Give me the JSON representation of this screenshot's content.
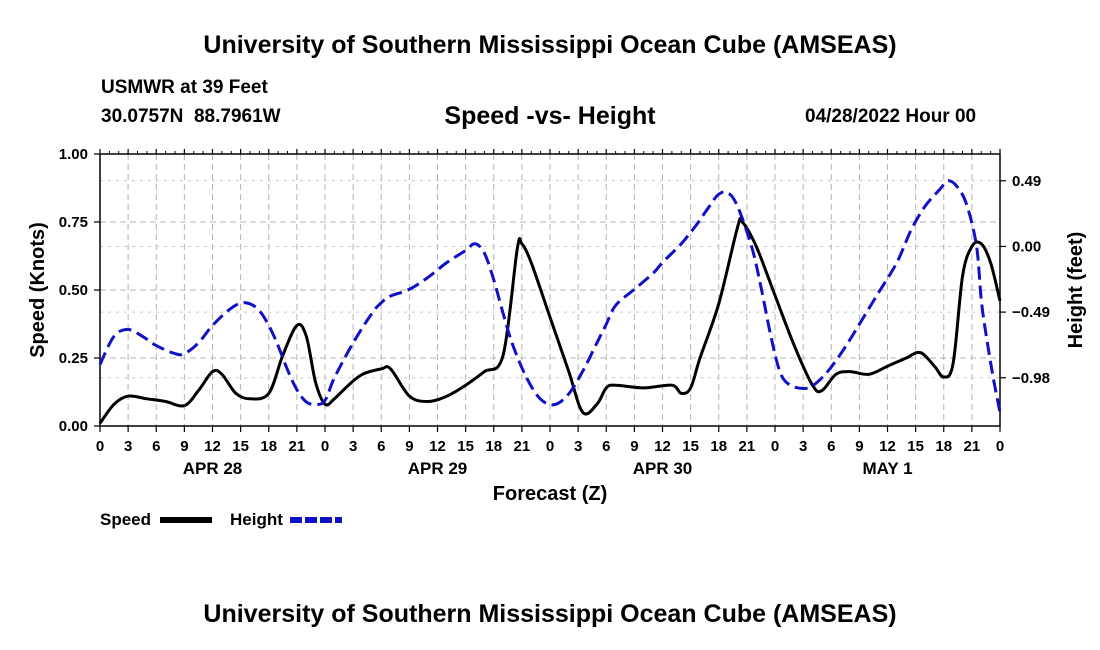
{
  "page": {
    "title_top": "University of Southern Mississippi Ocean Cube (AMSEAS)",
    "title_bottom": "University of Southern Mississippi Ocean Cube (AMSEAS)",
    "station": "USMWR at 39 Feet",
    "coords": "30.0757N  88.7961W",
    "chart_title": "Speed -vs- Height",
    "datetime": "04/28/2022 Hour 00"
  },
  "chart_data": {
    "type": "line",
    "title": "Speed -vs- Height",
    "xlabel": "Forecast (Z)",
    "ylabel": "Speed (Knots)",
    "ylabel_right": "Height (feet)",
    "x_hours": [
      0,
      3,
      6,
      9,
      12,
      15,
      18,
      21,
      24,
      27,
      30,
      33,
      36,
      39,
      42,
      45,
      48,
      51,
      54,
      57,
      60,
      63,
      66,
      69,
      72,
      75,
      78,
      81,
      84,
      87,
      90,
      93,
      96
    ],
    "xtick_labels": [
      "0",
      "3",
      "6",
      "9",
      "12",
      "15",
      "18",
      "21",
      "0",
      "3",
      "6",
      "9",
      "12",
      "15",
      "18",
      "21",
      "0",
      "3",
      "6",
      "9",
      "12",
      "15",
      "18",
      "21",
      "0",
      "3",
      "6",
      "9",
      "12",
      "15",
      "18",
      "21",
      "0"
    ],
    "day_labels": [
      {
        "label": "APR 28",
        "hour": 12
      },
      {
        "label": "APR 29",
        "hour": 36
      },
      {
        "label": "APR 30",
        "hour": 60
      },
      {
        "label": "MAY 1",
        "hour": 84
      }
    ],
    "xlim": [
      0,
      96
    ],
    "ylim": [
      0,
      1.0
    ],
    "yticks": [
      "0.00",
      "0.25",
      "0.50",
      "0.75",
      "1.00"
    ],
    "ylim_right": [
      -1.34,
      0.69
    ],
    "yticks_right": [
      "0.49",
      "0.00",
      "−0.49",
      "−0.98"
    ],
    "grid": true,
    "series": [
      {
        "name": "Speed",
        "color": "#000000",
        "axis": "left",
        "points": [
          [
            0,
            0.01
          ],
          [
            1.5,
            0.08
          ],
          [
            3,
            0.11
          ],
          [
            5,
            0.1
          ],
          [
            7,
            0.09
          ],
          [
            9,
            0.075
          ],
          [
            10.5,
            0.13
          ],
          [
            12,
            0.2
          ],
          [
            13,
            0.19
          ],
          [
            14.5,
            0.12
          ],
          [
            16,
            0.1
          ],
          [
            18,
            0.12
          ],
          [
            19.5,
            0.26
          ],
          [
            21,
            0.37
          ],
          [
            22,
            0.33
          ],
          [
            23,
            0.16
          ],
          [
            24,
            0.08
          ],
          [
            25,
            0.1
          ],
          [
            26.5,
            0.15
          ],
          [
            28,
            0.19
          ],
          [
            30,
            0.21
          ],
          [
            31,
            0.21
          ],
          [
            33,
            0.11
          ],
          [
            35,
            0.09
          ],
          [
            37,
            0.11
          ],
          [
            39,
            0.15
          ],
          [
            41,
            0.2
          ],
          [
            43,
            0.26
          ],
          [
            44.5,
            0.65
          ],
          [
            45,
            0.67
          ],
          [
            46,
            0.6
          ],
          [
            48,
            0.4
          ],
          [
            50,
            0.2
          ],
          [
            51.5,
            0.05
          ],
          [
            53,
            0.08
          ],
          [
            54,
            0.14
          ],
          [
            55,
            0.15
          ],
          [
            58,
            0.14
          ],
          [
            61,
            0.15
          ],
          [
            62,
            0.12
          ],
          [
            63,
            0.14
          ],
          [
            64,
            0.25
          ],
          [
            66,
            0.45
          ],
          [
            68,
            0.73
          ],
          [
            68.5,
            0.75
          ],
          [
            70,
            0.66
          ],
          [
            72,
            0.48
          ],
          [
            74,
            0.3
          ],
          [
            76,
            0.15
          ],
          [
            77,
            0.13
          ],
          [
            78.5,
            0.19
          ],
          [
            80,
            0.2
          ],
          [
            82,
            0.19
          ],
          [
            84,
            0.22
          ],
          [
            86,
            0.25
          ],
          [
            87.5,
            0.27
          ],
          [
            89,
            0.22
          ],
          [
            90,
            0.18
          ],
          [
            91,
            0.23
          ],
          [
            92,
            0.55
          ],
          [
            93,
            0.66
          ],
          [
            94,
            0.67
          ],
          [
            95,
            0.6
          ],
          [
            96,
            0.46
          ]
        ]
      },
      {
        "name": "Height",
        "color": "#1010c8",
        "axis": "right",
        "points": [
          [
            0,
            -0.88
          ],
          [
            1.5,
            -0.67
          ],
          [
            3,
            -0.62
          ],
          [
            4.5,
            -0.67
          ],
          [
            6,
            -0.74
          ],
          [
            8,
            -0.8
          ],
          [
            9,
            -0.8
          ],
          [
            10.5,
            -0.72
          ],
          [
            12,
            -0.59
          ],
          [
            14,
            -0.46
          ],
          [
            15.5,
            -0.42
          ],
          [
            17,
            -0.48
          ],
          [
            18.5,
            -0.66
          ],
          [
            20,
            -0.92
          ],
          [
            21,
            -1.07
          ],
          [
            22,
            -1.16
          ],
          [
            23,
            -1.18
          ],
          [
            24,
            -1.15
          ],
          [
            25,
            -0.98
          ],
          [
            27,
            -0.72
          ],
          [
            29,
            -0.5
          ],
          [
            30,
            -0.42
          ],
          [
            31,
            -0.37
          ],
          [
            33,
            -0.32
          ],
          [
            35,
            -0.23
          ],
          [
            37,
            -0.12
          ],
          [
            39,
            -0.03
          ],
          [
            40,
            0.02
          ],
          [
            41,
            -0.05
          ],
          [
            42,
            -0.25
          ],
          [
            43,
            -0.5
          ],
          [
            44,
            -0.73
          ],
          [
            45.5,
            -0.98
          ],
          [
            47,
            -1.14
          ],
          [
            48.5,
            -1.18
          ],
          [
            50,
            -1.1
          ],
          [
            51.5,
            -0.93
          ],
          [
            53,
            -0.72
          ],
          [
            54,
            -0.58
          ],
          [
            55,
            -0.44
          ],
          [
            57,
            -0.32
          ],
          [
            59,
            -0.2
          ],
          [
            60,
            -0.12
          ],
          [
            62,
            0.02
          ],
          [
            63.5,
            0.15
          ],
          [
            65,
            0.3
          ],
          [
            66,
            0.39
          ],
          [
            67,
            0.4
          ],
          [
            68,
            0.3
          ],
          [
            69.5,
            0.0
          ],
          [
            70.5,
            -0.3
          ],
          [
            71.5,
            -0.65
          ],
          [
            72.5,
            -0.93
          ],
          [
            73.5,
            -1.03
          ],
          [
            75,
            -1.06
          ],
          [
            76,
            -1.04
          ],
          [
            77,
            -0.98
          ],
          [
            78,
            -0.9
          ],
          [
            79.5,
            -0.75
          ],
          [
            81,
            -0.58
          ],
          [
            83,
            -0.35
          ],
          [
            85,
            -0.12
          ],
          [
            86.5,
            0.12
          ],
          [
            88,
            0.3
          ],
          [
            89.5,
            0.42
          ],
          [
            90.5,
            0.49
          ],
          [
            91.5,
            0.44
          ],
          [
            92.5,
            0.3
          ],
          [
            93.5,
            0.0
          ],
          [
            94,
            -0.4
          ],
          [
            94.5,
            -0.65
          ],
          [
            95.2,
            -0.95
          ],
          [
            96,
            -1.24
          ]
        ]
      }
    ]
  },
  "legend": {
    "speed_label": "Speed",
    "height_label": "Height",
    "speed_color": "#000000",
    "height_color": "#1010c8"
  }
}
